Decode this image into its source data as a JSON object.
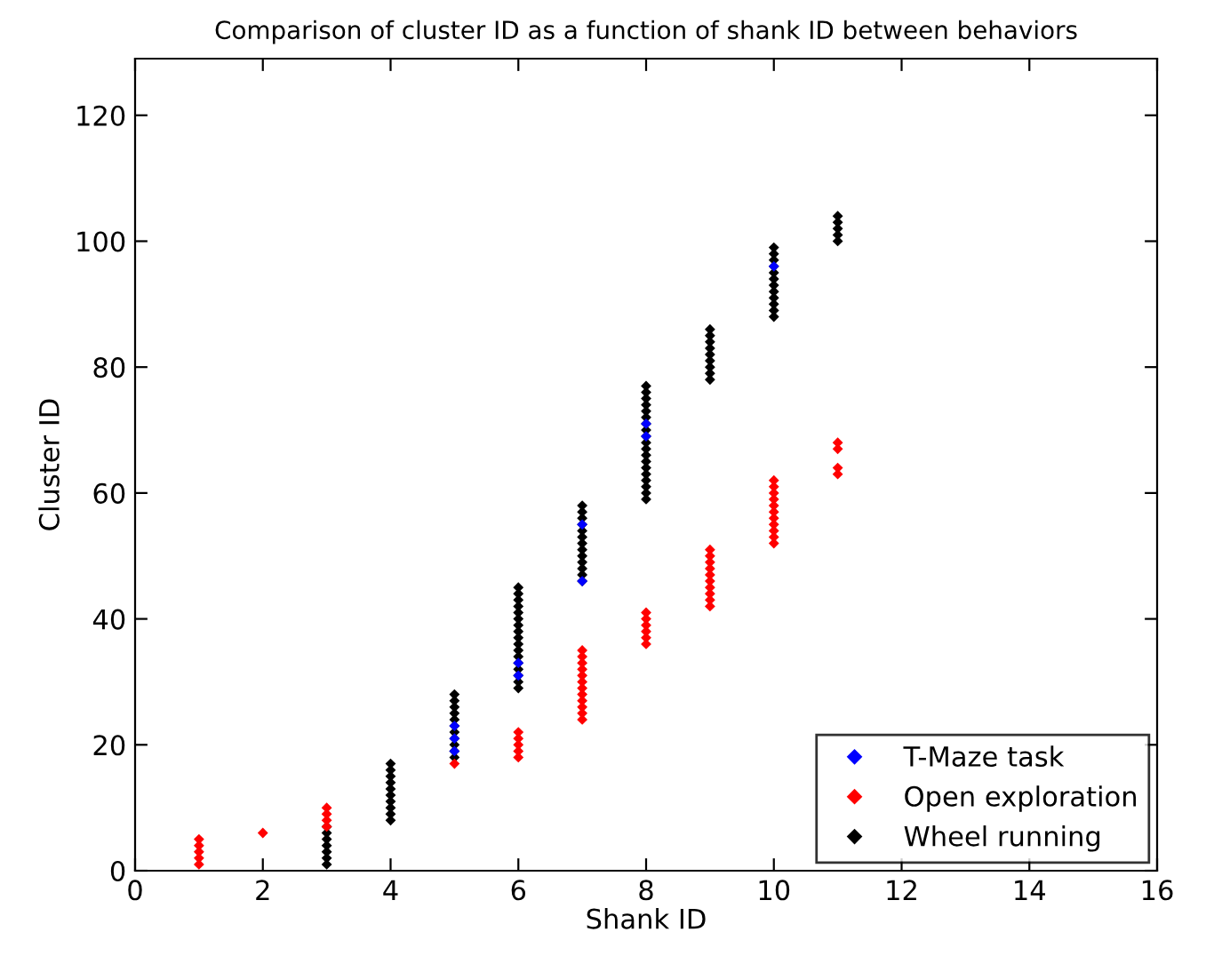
{
  "chart_data": {
    "type": "scatter",
    "title": "Comparison of cluster ID as a function of shank ID between behaviors",
    "xlabel": "Shank ID",
    "ylabel": "Cluster ID",
    "xlim": [
      0,
      16
    ],
    "xticks": [
      0,
      2,
      4,
      6,
      8,
      10,
      12,
      14,
      16
    ],
    "ylim": [
      0,
      129
    ],
    "yticks": [
      0,
      20,
      40,
      60,
      80,
      100,
      120
    ],
    "grid": false,
    "legend": "bottom right",
    "marker": "diamond",
    "series": [
      {
        "name": "T-Maze task",
        "color": "#0000ff",
        "x": [
          5,
          5,
          5,
          6,
          6,
          7,
          7,
          8,
          8,
          10
        ],
        "values": [
          19,
          21,
          23,
          31,
          33,
          46,
          55,
          69,
          71,
          96
        ]
      },
      {
        "name": "Open exploration",
        "color": "#ff0000",
        "x": [
          1,
          1,
          1,
          1,
          1,
          2,
          3,
          3,
          3,
          3,
          5,
          6,
          6,
          6,
          6,
          6,
          7,
          7,
          7,
          7,
          7,
          7,
          7,
          7,
          7,
          7,
          7,
          7,
          8,
          8,
          8,
          8,
          8,
          8,
          9,
          9,
          9,
          9,
          9,
          9,
          9,
          9,
          9,
          9,
          10,
          10,
          10,
          10,
          10,
          10,
          10,
          10,
          10,
          10,
          10,
          11,
          11,
          11,
          11
        ],
        "values": [
          1,
          2,
          3,
          4,
          5,
          6,
          7,
          8,
          9,
          10,
          17,
          18,
          19,
          20,
          21,
          22,
          24,
          25,
          26,
          27,
          28,
          29,
          30,
          31,
          32,
          33,
          34,
          35,
          36,
          37,
          38,
          39,
          40,
          41,
          42,
          43,
          44,
          45,
          46,
          47,
          48,
          49,
          50,
          51,
          52,
          53,
          54,
          55,
          56,
          57,
          58,
          59,
          60,
          61,
          62,
          63,
          64,
          67,
          68
        ]
      },
      {
        "name": "Wheel running",
        "color": "#000000",
        "x": [
          3,
          3,
          3,
          3,
          3,
          3,
          3,
          4,
          4,
          4,
          4,
          4,
          4,
          4,
          4,
          4,
          4,
          5,
          5,
          5,
          5,
          5,
          5,
          5,
          5,
          5,
          5,
          5,
          6,
          6,
          6,
          6,
          6,
          6,
          6,
          6,
          6,
          6,
          6,
          6,
          6,
          6,
          6,
          6,
          6,
          7,
          7,
          7,
          7,
          7,
          7,
          7,
          7,
          7,
          7,
          7,
          7,
          7,
          8,
          8,
          8,
          8,
          8,
          8,
          8,
          8,
          8,
          8,
          8,
          8,
          8,
          8,
          8,
          8,
          8,
          8,
          8,
          9,
          9,
          9,
          9,
          9,
          9,
          9,
          9,
          9,
          10,
          10,
          10,
          10,
          10,
          10,
          10,
          10,
          10,
          10,
          10,
          10,
          11,
          11,
          11,
          11,
          11
        ],
        "values": [
          1,
          2,
          3,
          4,
          5,
          6,
          7,
          8,
          9,
          10,
          11,
          12,
          13,
          14,
          15,
          16,
          17,
          18,
          19,
          20,
          21,
          22,
          23,
          24,
          25,
          26,
          27,
          28,
          29,
          30,
          31,
          32,
          33,
          34,
          35,
          36,
          37,
          38,
          39,
          40,
          41,
          42,
          43,
          44,
          45,
          46,
          47,
          48,
          49,
          50,
          51,
          52,
          53,
          54,
          55,
          56,
          57,
          58,
          59,
          60,
          61,
          62,
          63,
          64,
          65,
          66,
          67,
          68,
          69,
          70,
          71,
          72,
          73,
          74,
          75,
          76,
          77,
          78,
          79,
          80,
          81,
          82,
          83,
          84,
          85,
          86,
          88,
          89,
          90,
          91,
          92,
          93,
          94,
          95,
          96,
          97,
          98,
          99,
          100,
          101,
          102,
          103,
          104
        ]
      }
    ]
  }
}
